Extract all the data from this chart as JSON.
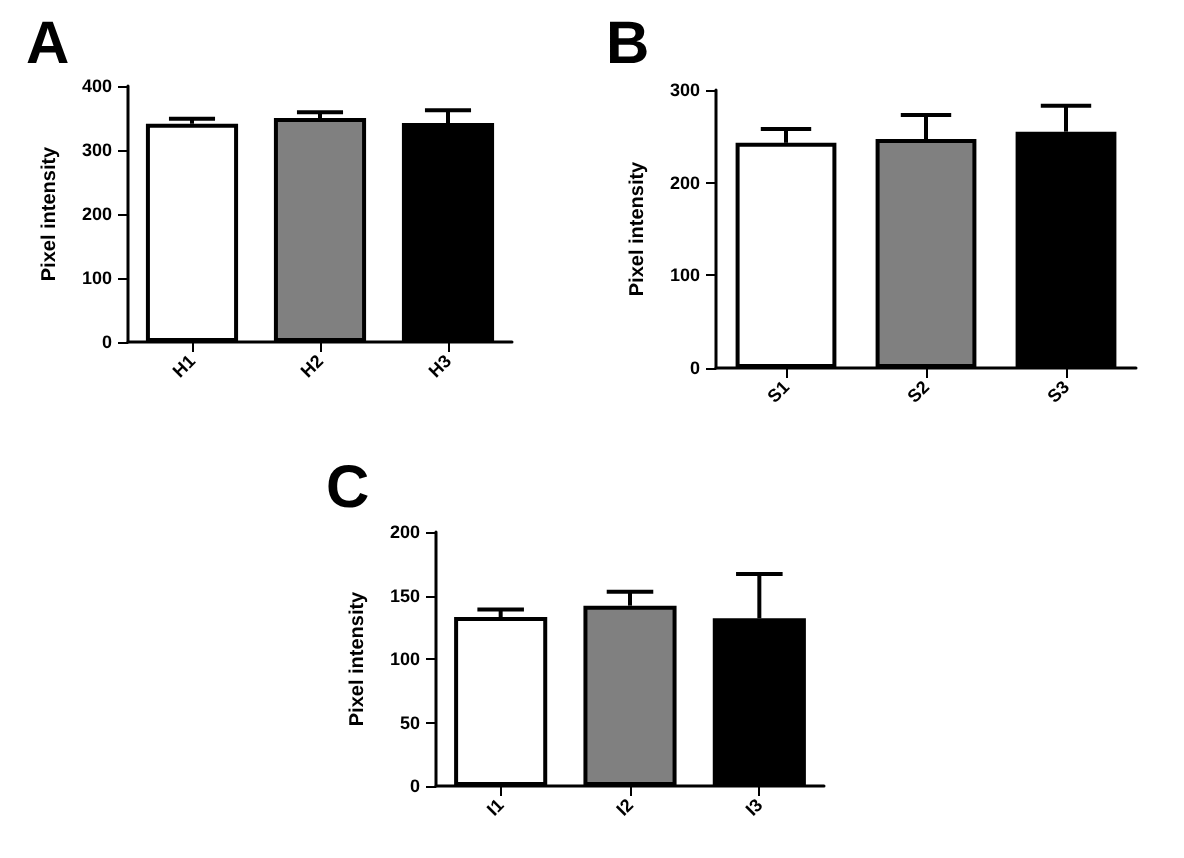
{
  "chart_data": [
    {
      "type": "bar",
      "title": "A",
      "ylabel": "Pixel intensity",
      "categories": [
        "H1",
        "H2",
        "H3"
      ],
      "values": [
        341,
        350,
        342
      ],
      "errors": [
        [
          341,
          349
        ],
        [
          350,
          359
        ],
        [
          342,
          362
        ]
      ],
      "colors": [
        "#ffffff",
        "#808080",
        "#000000"
      ],
      "ylim": [
        0,
        400
      ],
      "yticks": [
        0,
        100,
        200,
        300,
        400
      ],
      "grid": false
    },
    {
      "type": "bar",
      "title": "B",
      "ylabel": "Pixel intensity",
      "categories": [
        "S1",
        "S2",
        "S3"
      ],
      "values": [
        243,
        247,
        255
      ],
      "errors": [
        [
          243,
          258
        ],
        [
          247,
          273
        ],
        [
          255,
          283
        ]
      ],
      "colors": [
        "#ffffff",
        "#808080",
        "#000000"
      ],
      "ylim": [
        0,
        300
      ],
      "yticks": [
        0,
        100,
        200,
        300
      ],
      "grid": false
    },
    {
      "type": "bar",
      "title": "C",
      "ylabel": "Pixel intensity",
      "categories": [
        "I1",
        "I2",
        "I3"
      ],
      "values": [
        133,
        142,
        132
      ],
      "errors": [
        [
          133,
          139
        ],
        [
          142,
          153
        ],
        [
          132,
          167
        ]
      ],
      "colors": [
        "#ffffff",
        "#808080",
        "#000000"
      ],
      "ylim": [
        0,
        200
      ],
      "yticks": [
        0,
        50,
        100,
        150,
        200
      ],
      "grid": false
    }
  ]
}
